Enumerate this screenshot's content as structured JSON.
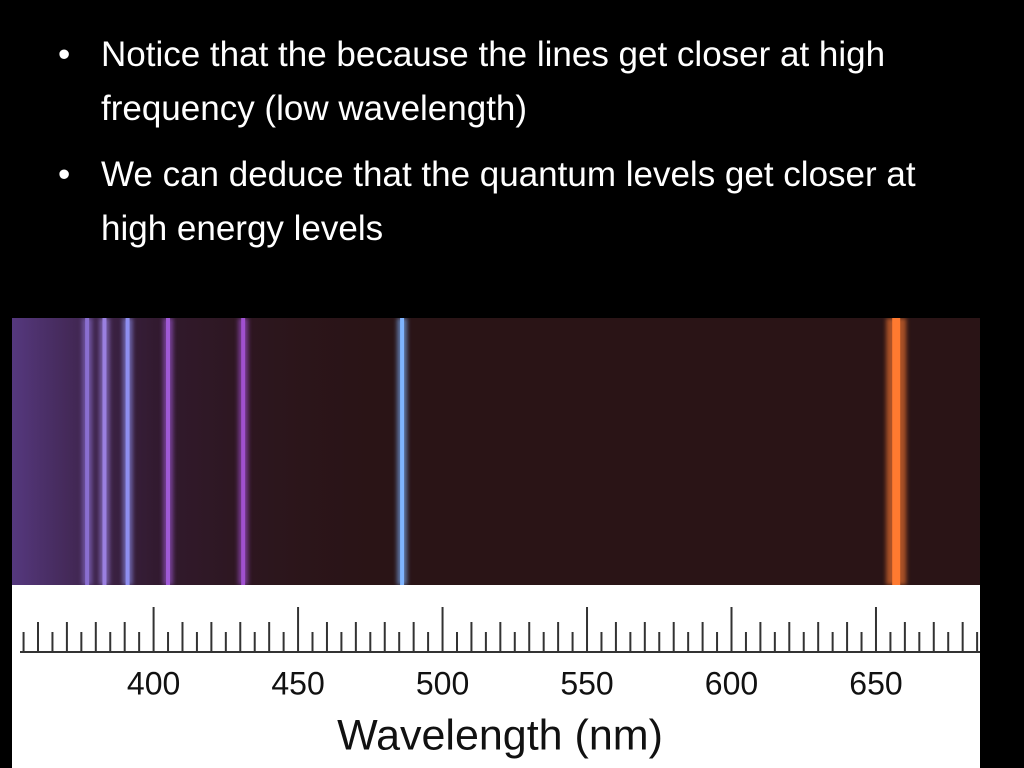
{
  "bullets": [
    "Notice that the because the lines get closer at high frequency (low wavelength)",
    "We can deduce that the quantum levels get closer at high energy levels"
  ],
  "chart_data": {
    "type": "spectrum",
    "x_label": "Wavelength (nm)",
    "xlim": [
      351,
      686
    ],
    "xticks": [
      400,
      450,
      500,
      550,
      600,
      650
    ],
    "xminor": [
      355,
      360,
      365,
      370,
      375,
      380,
      385,
      390,
      395,
      405,
      410,
      415,
      420,
      425,
      430,
      435,
      440,
      445,
      455,
      460,
      465,
      470,
      475,
      480,
      485,
      490,
      495,
      505,
      510,
      515,
      520,
      525,
      530,
      535,
      540,
      545,
      555,
      560,
      565,
      570,
      575,
      580,
      585,
      590,
      595,
      605,
      610,
      615,
      620,
      625,
      630,
      635,
      640,
      645,
      655,
      660,
      665,
      670,
      675,
      680,
      685
    ],
    "lines": {
      "x": [
        377,
        383,
        391,
        405,
        431,
        486,
        657
      ],
      "colors": [
        "#8a6fd0",
        "#9a80e0",
        "#8f8ff0",
        "#a05ad8",
        "#a050d0",
        "#7fb4ff",
        "#ff7a30"
      ]
    }
  }
}
